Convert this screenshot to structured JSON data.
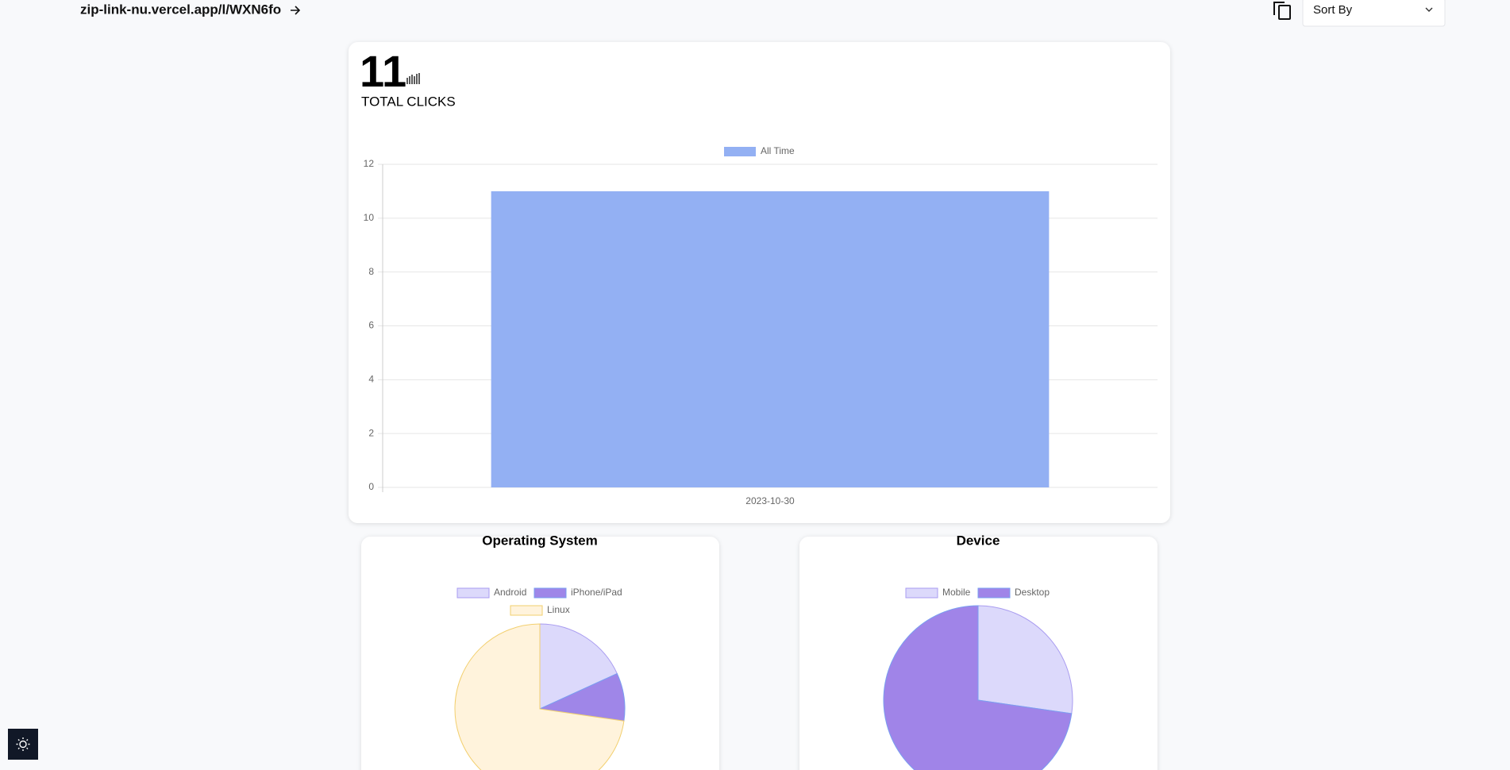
{
  "header": {
    "url": "zip-link-nu.vercel.app/l/WXN6fo",
    "sort_label": "Sort By"
  },
  "summary": {
    "total": 11,
    "label": "TOTAL CLICKS"
  },
  "chart_data": [
    {
      "type": "bar",
      "categories": [
        "2023-10-30"
      ],
      "series": [
        {
          "name": "All Time",
          "color": "#93b0f3",
          "values": [
            11
          ]
        }
      ],
      "ylim": [
        0,
        12
      ],
      "yticks": [
        0,
        2,
        4,
        6,
        8,
        10,
        12
      ],
      "grid": true
    },
    {
      "type": "pie",
      "title": "Operating System",
      "categories": [
        "Android",
        "iPhone/iPad",
        "Linux"
      ],
      "values": [
        2,
        1,
        8
      ],
      "colors": [
        "#dcd9fb",
        "#9f86e8",
        "#fff3dc"
      ],
      "border_colors": [
        "#a99cf0",
        "#7a9ff0",
        "#f2cf6e"
      ]
    },
    {
      "type": "pie",
      "title": "Device",
      "categories": [
        "Mobile",
        "Desktop"
      ],
      "values": [
        3,
        8
      ],
      "colors": [
        "#dcd9fb",
        "#a084e8"
      ],
      "border_colors": [
        "#a99cf0",
        "#7a9ff0"
      ]
    }
  ]
}
